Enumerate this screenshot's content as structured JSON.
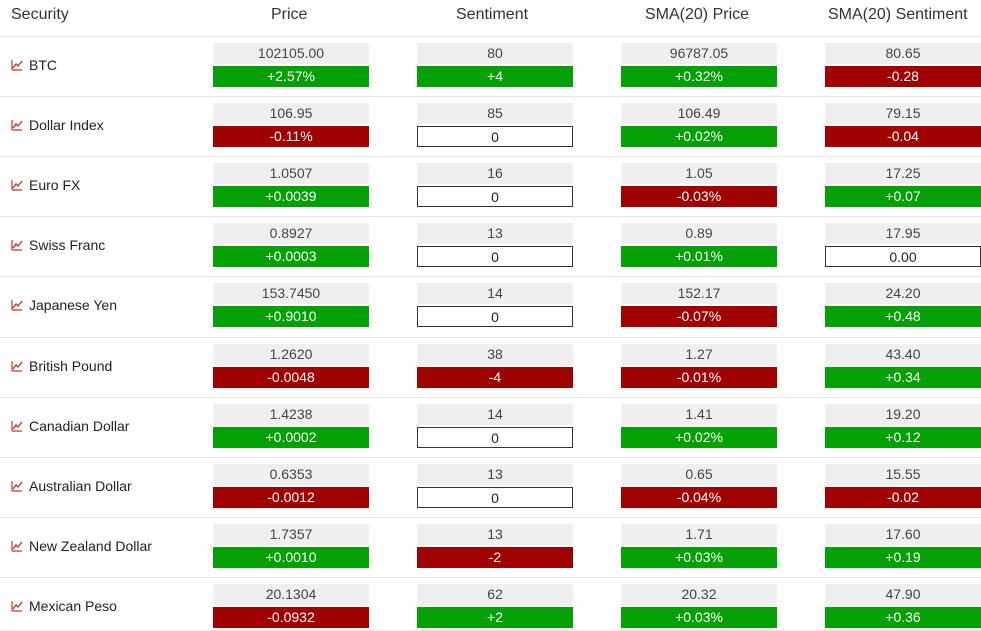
{
  "headers": [
    "Security",
    "Price",
    "Sentiment",
    "SMA(20) Price",
    "SMA(20) Sentiment"
  ],
  "icon": "chart-line-icon",
  "rows": [
    {
      "name": "BTC",
      "price": "102105.00",
      "price_chg": "+2.57%",
      "sent": "80",
      "sent_chg": "+4",
      "sma_price": "96787.05",
      "sma_price_chg": "+0.32%",
      "sma_sent": "80.65",
      "sma_sent_chg": "-0.28"
    },
    {
      "name": "Dollar Index",
      "price": "106.95",
      "price_chg": "-0.11%",
      "sent": "85",
      "sent_chg": "0",
      "sma_price": "106.49",
      "sma_price_chg": "+0.02%",
      "sma_sent": "79.15",
      "sma_sent_chg": "-0.04"
    },
    {
      "name": "Euro FX",
      "price": "1.0507",
      "price_chg": "+0.0039",
      "sent": "16",
      "sent_chg": "0",
      "sma_price": "1.05",
      "sma_price_chg": "-0.03%",
      "sma_sent": "17.25",
      "sma_sent_chg": "+0.07"
    },
    {
      "name": "Swiss Franc",
      "price": "0.8927",
      "price_chg": "+0.0003",
      "sent": "13",
      "sent_chg": "0",
      "sma_price": "0.89",
      "sma_price_chg": "+0.01%",
      "sma_sent": "17.95",
      "sma_sent_chg": "0.00"
    },
    {
      "name": "Japanese Yen",
      "price": "153.7450",
      "price_chg": "+0.9010",
      "sent": "14",
      "sent_chg": "0",
      "sma_price": "152.17",
      "sma_price_chg": "-0.07%",
      "sma_sent": "24.20",
      "sma_sent_chg": "+0.48"
    },
    {
      "name": "British Pound",
      "price": "1.2620",
      "price_chg": "-0.0048",
      "sent": "38",
      "sent_chg": "-4",
      "sma_price": "1.27",
      "sma_price_chg": "-0.01%",
      "sma_sent": "43.40",
      "sma_sent_chg": "+0.34"
    },
    {
      "name": "Canadian Dollar",
      "price": "1.4238",
      "price_chg": "+0.0002",
      "sent": "14",
      "sent_chg": "0",
      "sma_price": "1.41",
      "sma_price_chg": "+0.02%",
      "sma_sent": "19.20",
      "sma_sent_chg": "+0.12"
    },
    {
      "name": "Australian Dollar",
      "price": "0.6353",
      "price_chg": "-0.0012",
      "sent": "13",
      "sent_chg": "0",
      "sma_price": "0.65",
      "sma_price_chg": "-0.04%",
      "sma_sent": "15.55",
      "sma_sent_chg": "-0.02"
    },
    {
      "name": "New Zealand Dollar",
      "price": "1.7357",
      "price_chg": "+0.0010",
      "sent": "13",
      "sent_chg": "-2",
      "sma_price": "1.71",
      "sma_price_chg": "+0.03%",
      "sma_sent": "17.60",
      "sma_sent_chg": "+0.19"
    },
    {
      "name": "Mexican Peso",
      "price": "20.1304",
      "price_chg": "-0.0932",
      "sent": "62",
      "sent_chg": "+2",
      "sma_price": "20.32",
      "sma_price_chg": "+0.03%",
      "sma_sent": "47.90",
      "sma_sent_chg": "+0.36"
    }
  ]
}
